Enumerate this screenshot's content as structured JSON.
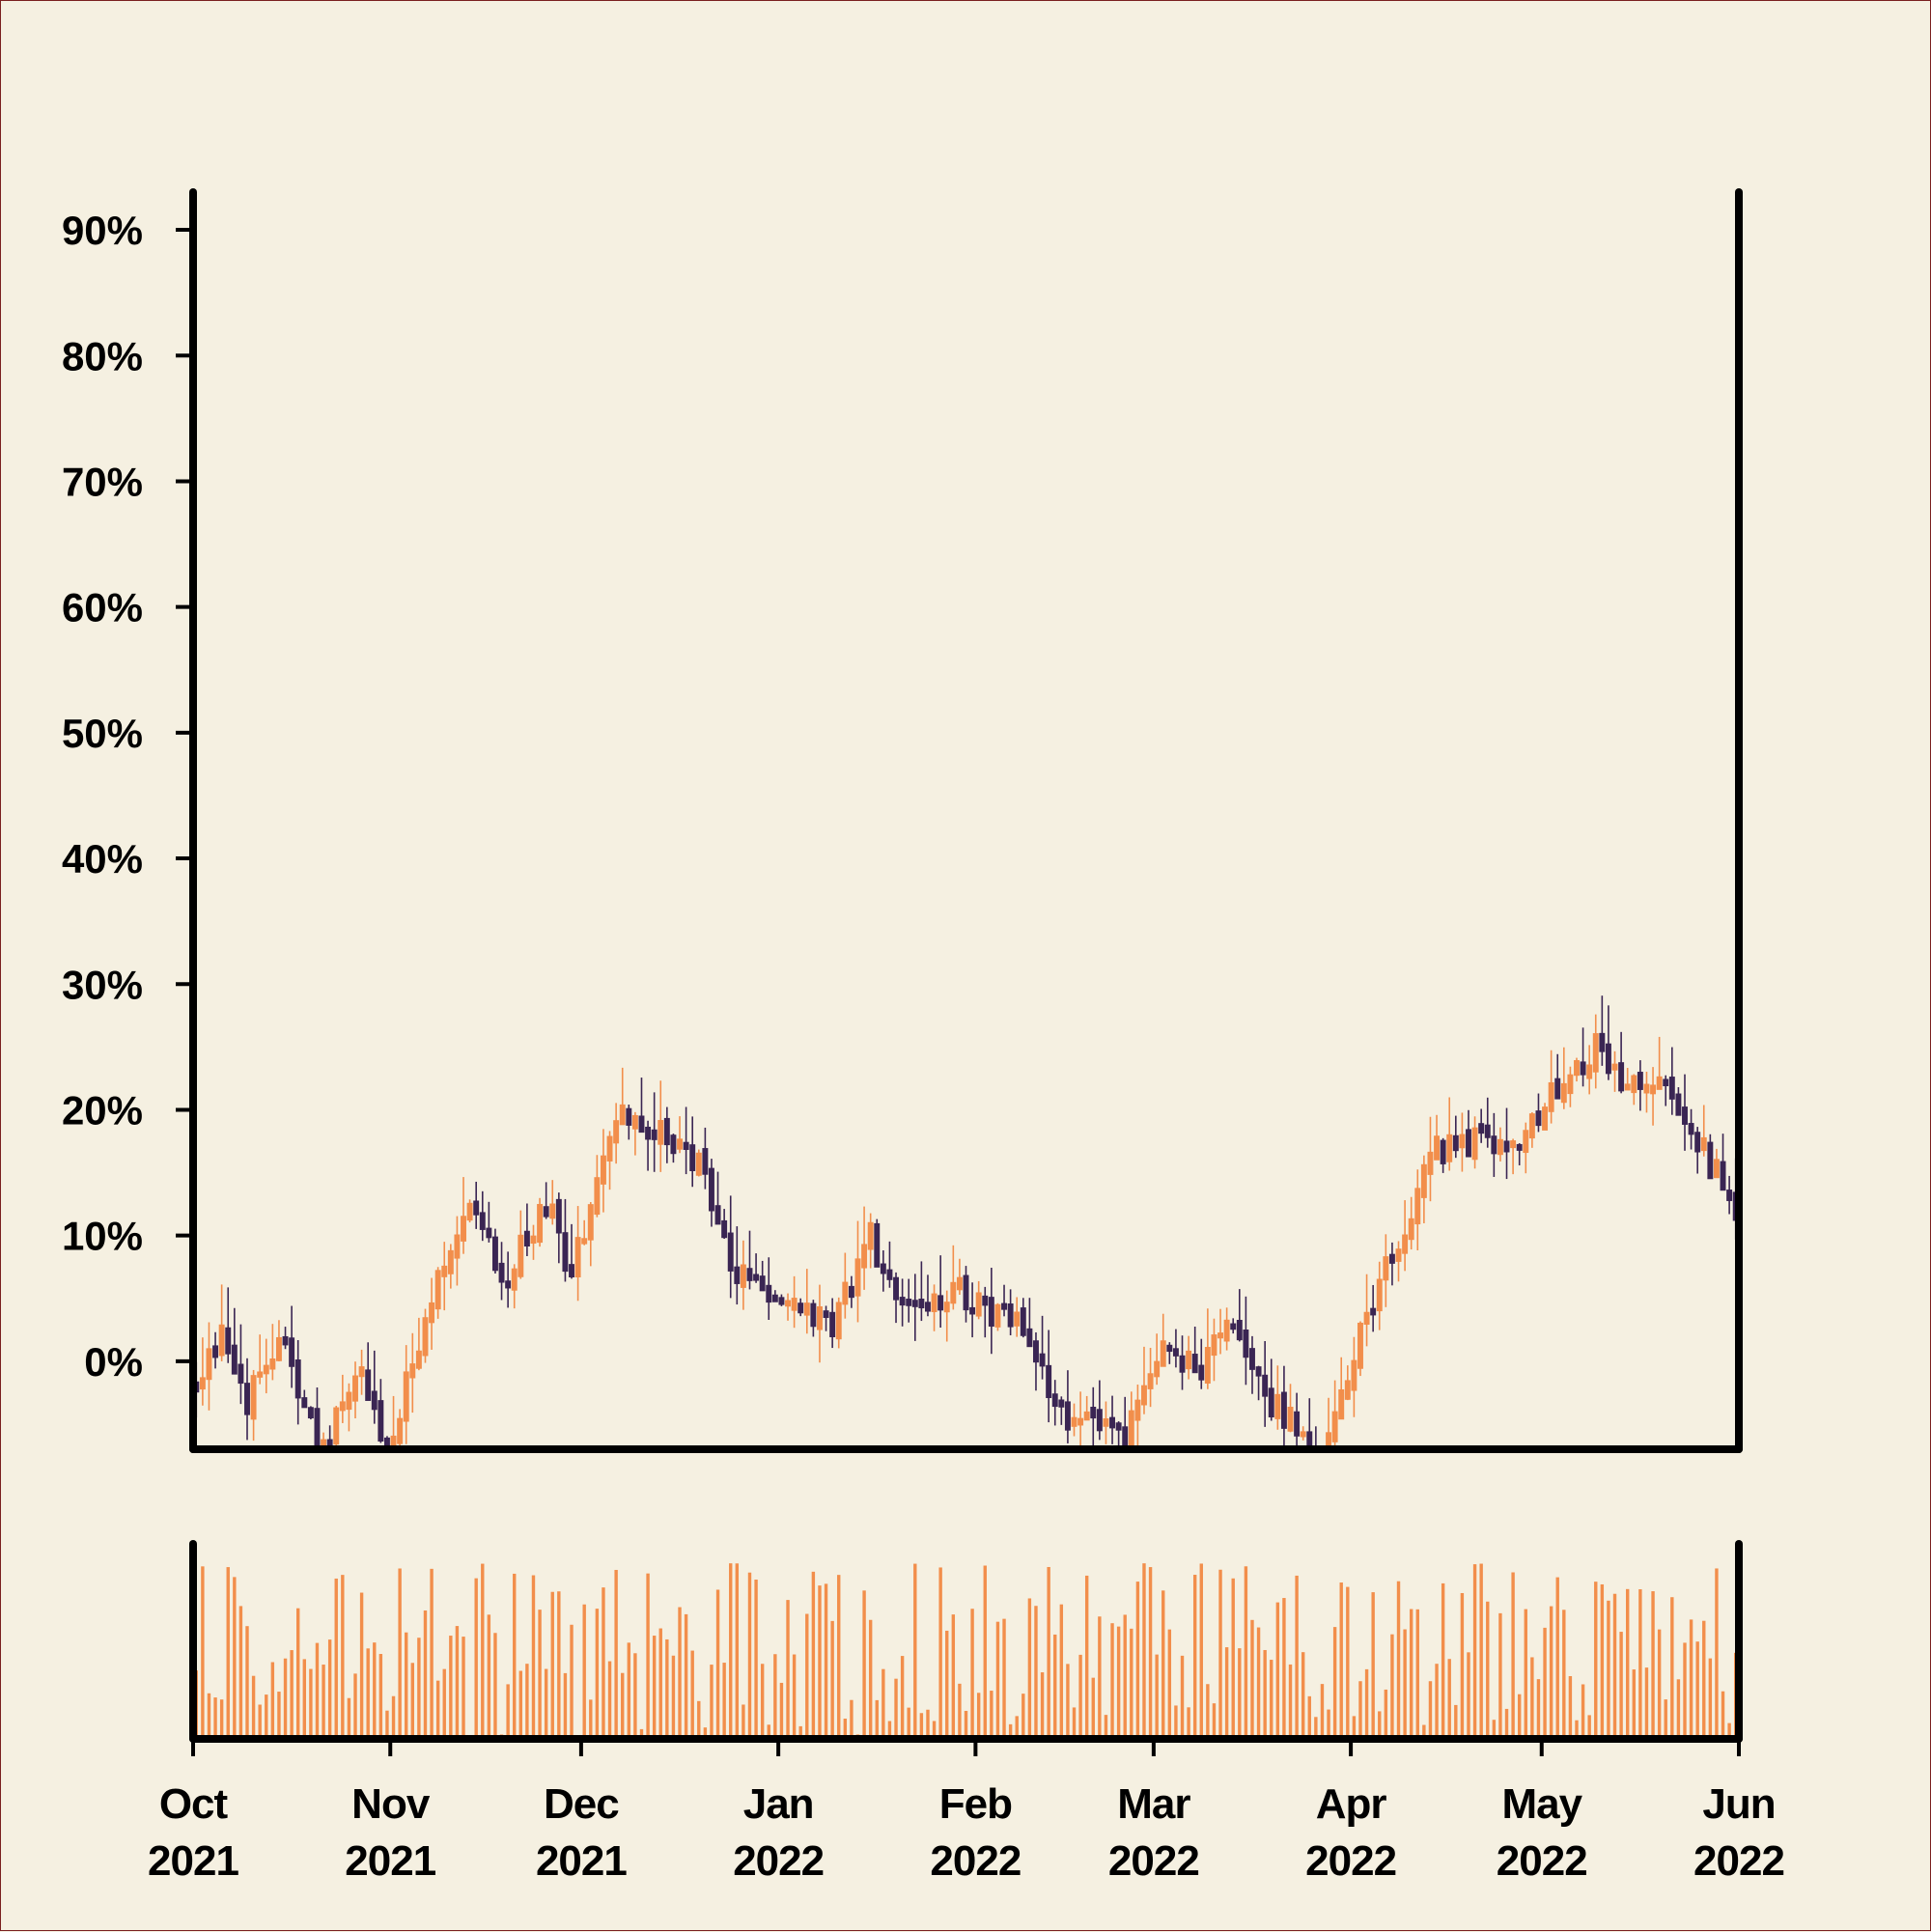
{
  "chart_data": {
    "type": "ohlc",
    "title": "",
    "xlabel": "",
    "ylabel": "",
    "x_range": [
      "2021-10-01",
      "2022-06-01"
    ],
    "y_range_percent": [
      -7,
      93
    ],
    "y_ticks": [
      0,
      10,
      20,
      30,
      40,
      50,
      60,
      70,
      80,
      90
    ],
    "y_tick_labels": [
      "0%",
      "10%",
      "20%",
      "30%",
      "40%",
      "50%",
      "60%",
      "70%",
      "80%",
      "90%"
    ],
    "x_ticks": [
      {
        "date": "2021-10-01",
        "month": "Oct",
        "year": "2021"
      },
      {
        "date": "2021-11-01",
        "month": "Nov",
        "year": "2021"
      },
      {
        "date": "2021-12-01",
        "month": "Dec",
        "year": "2021"
      },
      {
        "date": "2022-01-01",
        "month": "Jan",
        "year": "2022"
      },
      {
        "date": "2022-02-01",
        "month": "Feb",
        "year": "2022"
      },
      {
        "date": "2022-03-01",
        "month": "Mar",
        "year": "2022"
      },
      {
        "date": "2022-04-01",
        "month": "Apr",
        "year": "2022"
      },
      {
        "date": "2022-05-01",
        "month": "May",
        "year": "2022"
      },
      {
        "date": "2022-06-01",
        "month": "Jun",
        "year": "2022"
      }
    ],
    "close_anchors": [
      [
        "2021-10-01",
        -2
      ],
      [
        "2021-10-05",
        3
      ],
      [
        "2021-10-09",
        -3
      ],
      [
        "2021-10-14",
        2
      ],
      [
        "2021-10-21",
        -7
      ],
      [
        "2021-10-27",
        0
      ],
      [
        "2021-10-31",
        -7
      ],
      [
        "2021-11-08",
        7
      ],
      [
        "2021-11-14",
        13
      ],
      [
        "2021-11-18",
        6
      ],
      [
        "2021-11-25",
        13
      ],
      [
        "2021-11-29",
        7
      ],
      [
        "2021-12-06",
        20
      ],
      [
        "2021-12-14",
        18
      ],
      [
        "2021-12-19",
        16
      ],
      [
        "2021-12-24",
        8
      ],
      [
        "2021-12-31",
        5
      ],
      [
        "2022-01-09",
        3
      ],
      [
        "2022-01-15",
        10
      ],
      [
        "2022-01-21",
        4
      ],
      [
        "2022-01-28",
        6
      ],
      [
        "2022-02-07",
        3
      ],
      [
        "2022-02-15",
        -4
      ],
      [
        "2022-02-24",
        -6
      ],
      [
        "2022-03-03",
        2
      ],
      [
        "2022-03-07",
        -1
      ],
      [
        "2022-03-12",
        3
      ],
      [
        "2022-03-19",
        -3
      ],
      [
        "2022-03-27",
        -7
      ],
      [
        "2022-04-04",
        5
      ],
      [
        "2022-04-14",
        17
      ],
      [
        "2022-04-21",
        18
      ],
      [
        "2022-04-27",
        17
      ],
      [
        "2022-05-03",
        22
      ],
      [
        "2022-05-09",
        25
      ],
      [
        "2022-05-14",
        22
      ],
      [
        "2022-05-20",
        23
      ],
      [
        "2022-05-25",
        18
      ],
      [
        "2022-05-31",
        12
      ]
    ],
    "volume_range": [
      0,
      1
    ],
    "colors": {
      "up": "#f28e4b",
      "down": "#3a2553",
      "volume": "#f28e4b",
      "axis": "#000000",
      "background": "#f5f0e1"
    }
  }
}
